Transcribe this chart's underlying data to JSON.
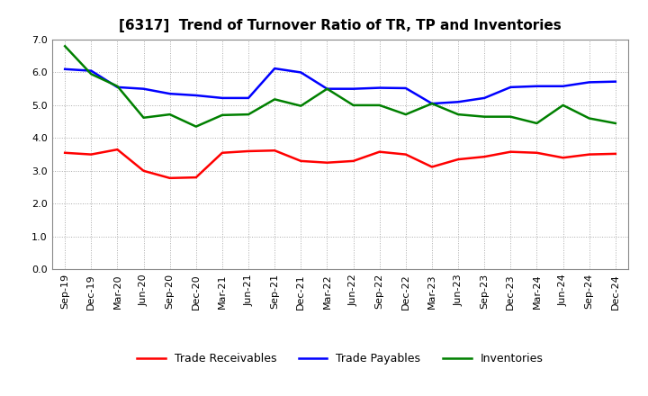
{
  "title": "[6317]  Trend of Turnover Ratio of TR, TP and Inventories",
  "x_labels": [
    "Sep-19",
    "Dec-19",
    "Mar-20",
    "Jun-20",
    "Sep-20",
    "Dec-20",
    "Mar-21",
    "Jun-21",
    "Sep-21",
    "Dec-21",
    "Mar-22",
    "Jun-22",
    "Sep-22",
    "Dec-22",
    "Mar-23",
    "Jun-23",
    "Sep-23",
    "Dec-23",
    "Mar-24",
    "Jun-24",
    "Sep-24",
    "Dec-24"
  ],
  "trade_receivables": [
    3.55,
    3.5,
    3.65,
    3.0,
    2.78,
    2.8,
    3.55,
    3.6,
    3.62,
    3.3,
    3.25,
    3.3,
    3.58,
    3.5,
    3.12,
    3.35,
    3.43,
    3.58,
    3.55,
    3.4,
    3.5,
    3.52
  ],
  "trade_payables": [
    6.1,
    6.05,
    5.55,
    5.5,
    5.35,
    5.3,
    5.22,
    5.22,
    6.12,
    6.0,
    5.5,
    5.5,
    5.53,
    5.52,
    5.05,
    5.1,
    5.22,
    5.55,
    5.58,
    5.58,
    5.7,
    5.72
  ],
  "inventories": [
    6.8,
    5.95,
    5.58,
    4.62,
    4.72,
    4.35,
    4.7,
    4.72,
    5.18,
    4.98,
    5.5,
    5.0,
    5.0,
    4.72,
    5.05,
    4.72,
    4.65,
    4.65,
    4.45,
    5.0,
    4.6,
    4.45
  ],
  "ylim": [
    0.0,
    7.0
  ],
  "yticks": [
    0.0,
    1.0,
    2.0,
    3.0,
    4.0,
    5.0,
    6.0,
    7.0
  ],
  "tr_color": "#ff0000",
  "tp_color": "#0000ff",
  "inv_color": "#008000",
  "bg_color": "#ffffff",
  "plot_bg_color": "#ffffff",
  "grid_color": "#aaaaaa",
  "line_width": 1.8,
  "legend_labels": [
    "Trade Receivables",
    "Trade Payables",
    "Inventories"
  ],
  "title_fontsize": 11,
  "tick_fontsize": 8,
  "legend_fontsize": 9
}
